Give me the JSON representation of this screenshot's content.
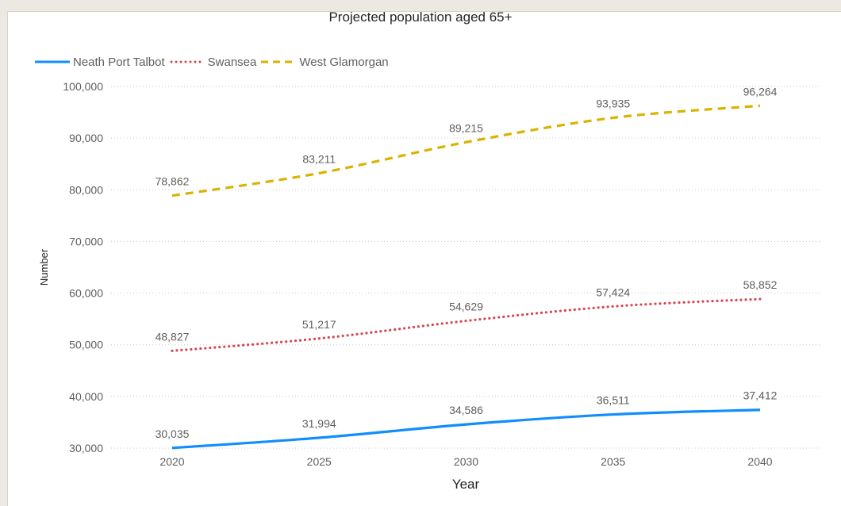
{
  "chart_data": {
    "type": "line",
    "title": "Projected population aged 65+",
    "xlabel": "Year",
    "ylabel": "Number",
    "x": [
      2020,
      2025,
      2030,
      2035,
      2040
    ],
    "x_tick_labels": [
      "2020",
      "2025",
      "2030",
      "2035",
      "2040"
    ],
    "y_ticks": [
      30000,
      40000,
      50000,
      60000,
      70000,
      80000,
      90000,
      100000
    ],
    "y_tick_labels": [
      "30,000",
      "40,000",
      "50,000",
      "60,000",
      "70,000",
      "80,000",
      "90,000",
      "100,000"
    ],
    "ylim": [
      30000,
      100000
    ],
    "grid": "horizontal dotted",
    "legend_position": "top-left",
    "series": [
      {
        "name": "Neath Port Talbot",
        "values": [
          30035,
          31994,
          34586,
          36511,
          37412
        ],
        "labels": [
          "30,035",
          "31,994",
          "34,586",
          "36,511",
          "37,412"
        ],
        "color": "#118dff",
        "dash": "solid"
      },
      {
        "name": "Swansea",
        "values": [
          48827,
          51217,
          54629,
          57424,
          58852
        ],
        "labels": [
          "48,827",
          "51,217",
          "54,629",
          "57,424",
          "58,852"
        ],
        "color": "#d64550",
        "dash": "dotted"
      },
      {
        "name": "West Glamorgan",
        "values": [
          78862,
          83211,
          89215,
          93935,
          96264
        ],
        "labels": [
          "78,862",
          "83,211",
          "89,215",
          "93,935",
          "96,264"
        ],
        "color": "#d9b300",
        "dash": "dashed"
      }
    ]
  }
}
